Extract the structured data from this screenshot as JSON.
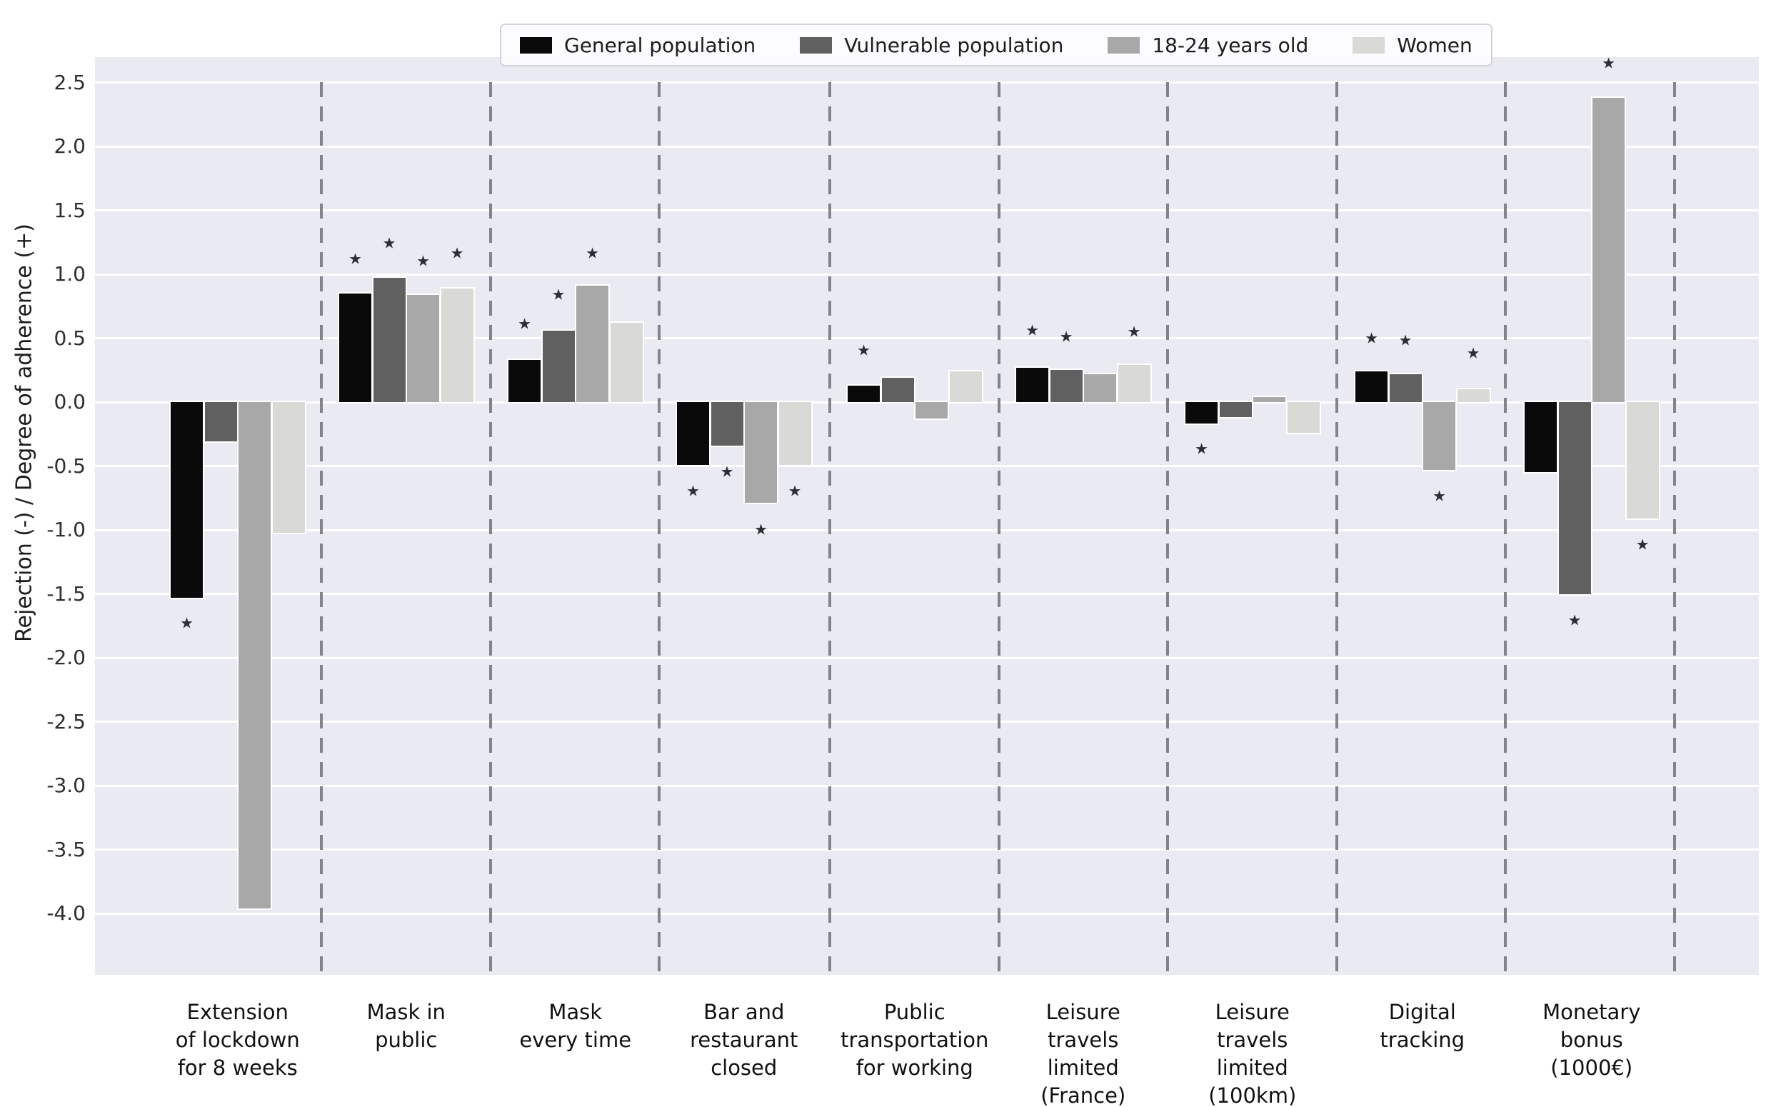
{
  "chart_data": {
    "type": "bar",
    "title": "",
    "xlabel": "",
    "ylabel": "Rejection (-) / Degree of adherence (+)",
    "ylim": [
      -4.48,
      2.7
    ],
    "grid": true,
    "background_color": "#eaeaf2",
    "gridline_color": "#ffffff",
    "separator_color": "#83838d",
    "star_color": "#2d2d38",
    "legend_position": "top-center",
    "yticks": [
      "2.5",
      "2.0",
      "1.5",
      "1.0",
      "0.5",
      "0.0",
      "-0.5",
      "-1.0",
      "-1.5",
      "-2.0",
      "-2.5",
      "-3.0",
      "-3.5",
      "-4.0"
    ],
    "categories": [
      "Extension\nof lockdown\nfor 8 weeks",
      "Mask in\npublic",
      "Mask\nevery time",
      "Bar and\nrestaurant\nclosed",
      "Public\ntransportation\nfor working",
      "Leisure\ntravels\nlimited\n(France)",
      "Leisure\ntravels\nlimited\n(100km)",
      "Digital\ntracking",
      "Monetary\nbonus\n(1000€)"
    ],
    "series": [
      {
        "name": "General population",
        "color": "#0a0a0a",
        "values": [
          -1.53,
          0.85,
          0.33,
          -0.49,
          0.13,
          0.27,
          -0.17,
          0.24,
          -0.55
        ]
      },
      {
        "name": "Vulnerable population",
        "color": "#606060",
        "values": [
          -0.31,
          0.97,
          0.56,
          -0.34,
          0.19,
          0.25,
          -0.12,
          0.22,
          -1.5
        ]
      },
      {
        "name": "18-24 years old",
        "color": "#a8a8a8",
        "values": [
          -3.96,
          0.84,
          0.91,
          -0.79,
          -0.13,
          0.22,
          0.04,
          -0.53,
          2.38
        ]
      },
      {
        "name": "Women",
        "color": "#d9d9d6",
        "values": [
          -1.02,
          0.89,
          0.62,
          -0.49,
          0.24,
          0.29,
          -0.24,
          0.1,
          -0.91
        ]
      }
    ],
    "significance_stars": [
      {
        "category": 0,
        "series": 0,
        "value": -1.73
      },
      {
        "category": 1,
        "series": 0,
        "value": 1.12
      },
      {
        "category": 1,
        "series": 1,
        "value": 1.24
      },
      {
        "category": 1,
        "series": 2,
        "value": 1.1
      },
      {
        "category": 1,
        "series": 3,
        "value": 1.16
      },
      {
        "category": 2,
        "series": 0,
        "value": 0.61
      },
      {
        "category": 2,
        "series": 1,
        "value": 0.84
      },
      {
        "category": 2,
        "series": 2,
        "value": 1.16
      },
      {
        "category": 3,
        "series": 0,
        "value": -0.7
      },
      {
        "category": 3,
        "series": 1,
        "value": -0.55
      },
      {
        "category": 3,
        "series": 2,
        "value": -1.0
      },
      {
        "category": 3,
        "series": 3,
        "value": -0.7
      },
      {
        "category": 4,
        "series": 0,
        "value": 0.4
      },
      {
        "category": 5,
        "series": 0,
        "value": 0.56
      },
      {
        "category": 5,
        "series": 1,
        "value": 0.51
      },
      {
        "category": 5,
        "series": 3,
        "value": 0.55
      },
      {
        "category": 6,
        "series": 0,
        "value": -0.37
      },
      {
        "category": 7,
        "series": 0,
        "value": 0.5
      },
      {
        "category": 7,
        "series": 1,
        "value": 0.48
      },
      {
        "category": 7,
        "series": 2,
        "value": -0.74
      },
      {
        "category": 7,
        "series": 3,
        "value": 0.38
      },
      {
        "category": 8,
        "series": 1,
        "value": -1.71
      },
      {
        "category": 8,
        "series": 2,
        "value": 2.65
      },
      {
        "category": 8,
        "series": 3,
        "value": -1.12
      }
    ]
  }
}
